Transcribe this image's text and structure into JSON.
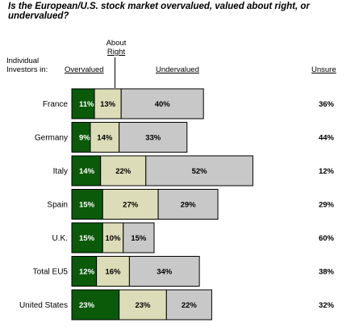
{
  "title": "Is the European/U.S. stock market overvalued, valued about right, or undervalued?",
  "headers": {
    "row_label": "Individual Investors in:",
    "overvalued": "Overvalued",
    "about_right_1": "About",
    "about_right_2": "Right",
    "undervalued": "Undervalued",
    "unsure": "Unsure"
  },
  "colors": {
    "overvalued": "#0a5a0a",
    "about_right": "#dcdcb8",
    "undervalued": "#c8c8c8",
    "border": "#000000"
  },
  "chart_data": {
    "type": "bar",
    "orientation": "horizontal",
    "stacked": true,
    "title": "Is the European/U.S. stock market overvalued, valued about right, or undervalued?",
    "categories": [
      "France",
      "Germany",
      "Italy",
      "Spain",
      "U.K.",
      "Total EU5",
      "United States"
    ],
    "series": [
      {
        "name": "Overvalued",
        "values": [
          11,
          9,
          14,
          15,
          15,
          12,
          23
        ]
      },
      {
        "name": "About Right",
        "values": [
          13,
          14,
          22,
          27,
          10,
          16,
          23
        ]
      },
      {
        "name": "Undervalued",
        "values": [
          40,
          33,
          52,
          29,
          15,
          34,
          22
        ]
      }
    ],
    "unsure": {
      "name": "Unsure",
      "values": [
        36,
        44,
        12,
        29,
        60,
        38,
        32
      ]
    },
    "value_suffix": "%"
  }
}
